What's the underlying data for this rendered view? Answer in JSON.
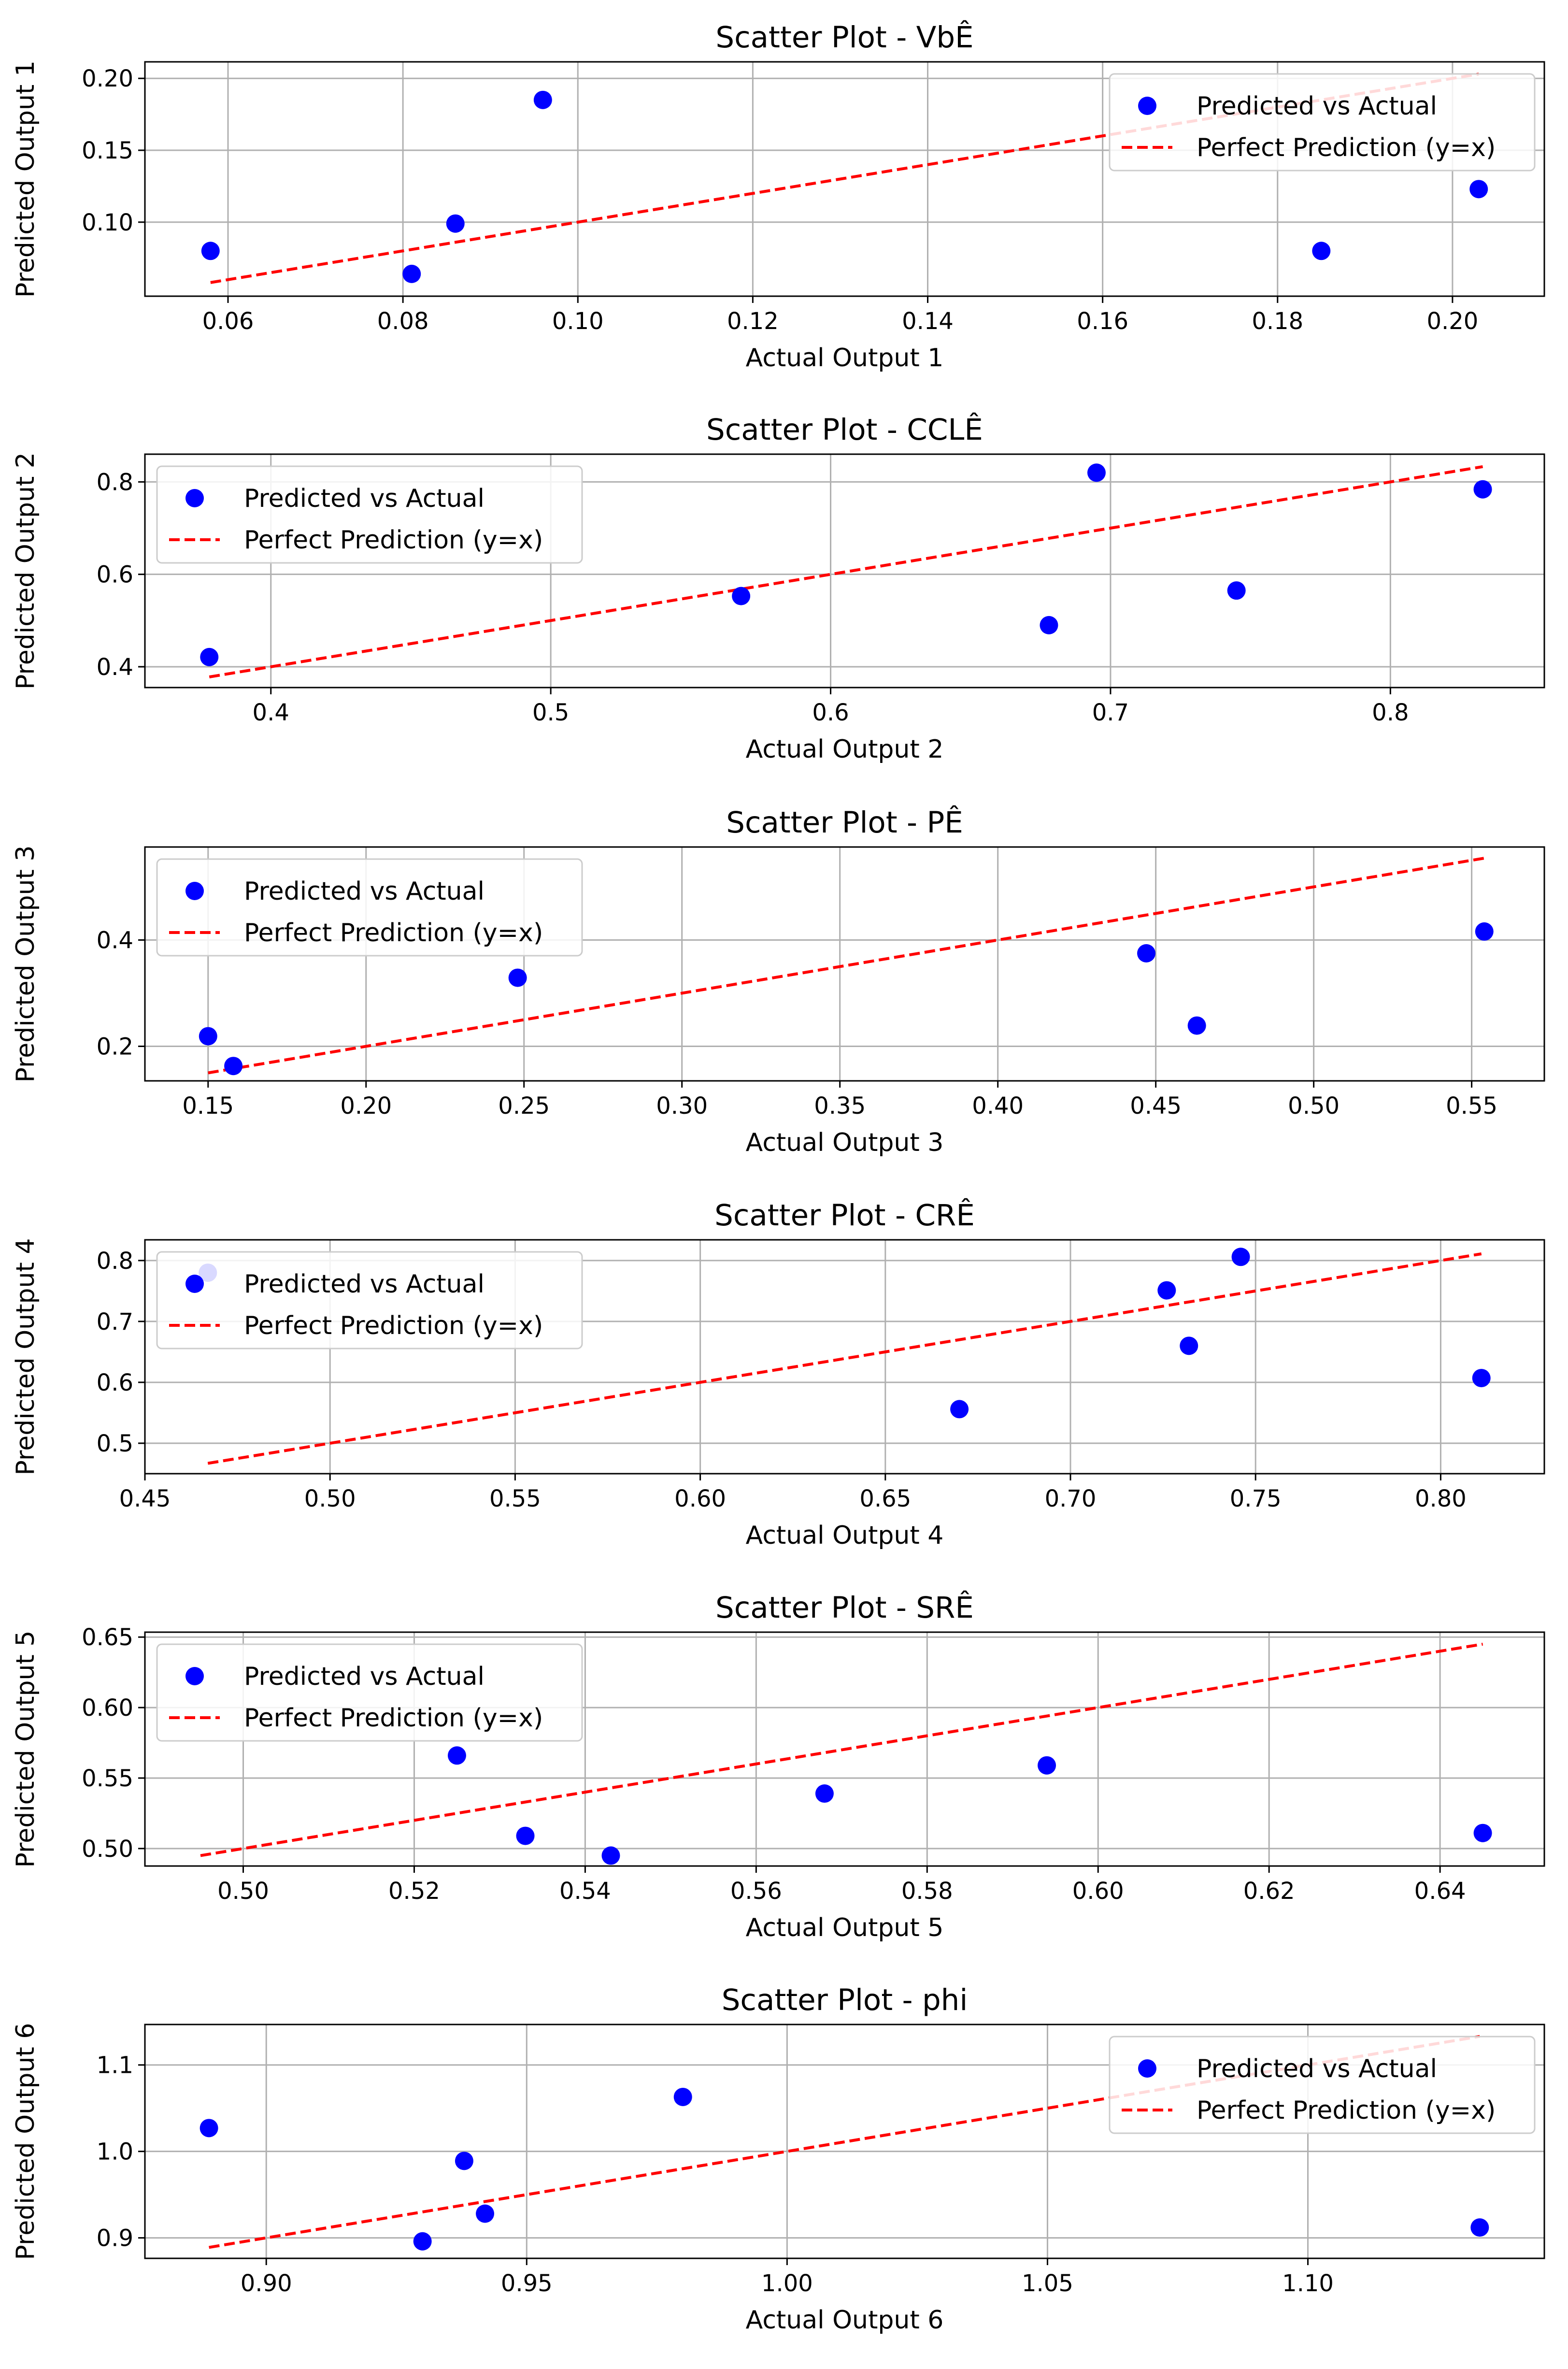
{
  "chart_data": [
    {
      "type": "scatter",
      "title": "Scatter Plot - VbÊ",
      "xlabel": "Actual Output 1",
      "ylabel": "Predicted Output 1",
      "xlim": [
        0.0505,
        0.2105
      ],
      "ylim": [
        0.0485,
        0.2115
      ],
      "xticks": [
        0.06,
        0.08,
        0.1,
        0.12,
        0.14,
        0.16,
        0.18,
        0.2
      ],
      "xtick_labels": [
        "0.06",
        "0.08",
        "0.10",
        "0.12",
        "0.14",
        "0.16",
        "0.18",
        "0.20"
      ],
      "yticks": [
        0.1,
        0.15,
        0.2
      ],
      "ytick_labels": [
        "0.10",
        "0.15",
        "0.20"
      ],
      "grid": true,
      "legend_position": "upper-right",
      "series": [
        {
          "name": "Predicted vs Actual",
          "kind": "scatter",
          "color": "#0000ff",
          "x": [
            0.058,
            0.081,
            0.086,
            0.096,
            0.185,
            0.203
          ],
          "y": [
            0.08,
            0.064,
            0.099,
            0.185,
            0.08,
            0.123
          ]
        },
        {
          "name": "Perfect Prediction (y=x)",
          "kind": "line",
          "style": "dashed",
          "color": "#ff0000",
          "x": [
            0.058,
            0.203
          ],
          "y": [
            0.058,
            0.203
          ]
        }
      ]
    },
    {
      "type": "scatter",
      "title": "Scatter Plot - CCLÊ",
      "xlabel": "Actual Output 2",
      "ylabel": "Predicted Output 2",
      "xlim": [
        0.355,
        0.855
      ],
      "ylim": [
        0.355,
        0.86
      ],
      "xticks": [
        0.4,
        0.5,
        0.6,
        0.7,
        0.8
      ],
      "xtick_labels": [
        "0.4",
        "0.5",
        "0.6",
        "0.7",
        "0.8"
      ],
      "yticks": [
        0.4,
        0.6,
        0.8
      ],
      "ytick_labels": [
        "0.4",
        "0.6",
        "0.8"
      ],
      "grid": true,
      "legend_position": "upper-left",
      "series": [
        {
          "name": "Predicted vs Actual",
          "kind": "scatter",
          "color": "#0000ff",
          "x": [
            0.378,
            0.568,
            0.678,
            0.695,
            0.745,
            0.833
          ],
          "y": [
            0.421,
            0.553,
            0.49,
            0.82,
            0.565,
            0.784
          ]
        },
        {
          "name": "Perfect Prediction (y=x)",
          "kind": "line",
          "style": "dashed",
          "color": "#ff0000",
          "x": [
            0.378,
            0.833
          ],
          "y": [
            0.378,
            0.833
          ]
        }
      ]
    },
    {
      "type": "scatter",
      "title": "Scatter Plot - PÊ",
      "xlabel": "Actual Output 3",
      "ylabel": "Predicted Output 3",
      "xlim": [
        0.13,
        0.573
      ],
      "ylim": [
        0.135,
        0.575
      ],
      "xticks": [
        0.15,
        0.2,
        0.25,
        0.3,
        0.35,
        0.4,
        0.45,
        0.5,
        0.55
      ],
      "xtick_labels": [
        "0.15",
        "0.20",
        "0.25",
        "0.30",
        "0.35",
        "0.40",
        "0.45",
        "0.50",
        "0.55"
      ],
      "yticks": [
        0.2,
        0.4
      ],
      "ytick_labels": [
        "0.2",
        "0.4"
      ],
      "grid": true,
      "legend_position": "upper-left",
      "series": [
        {
          "name": "Predicted vs Actual",
          "kind": "scatter",
          "color": "#0000ff",
          "x": [
            0.15,
            0.158,
            0.248,
            0.447,
            0.463,
            0.554
          ],
          "y": [
            0.219,
            0.163,
            0.329,
            0.375,
            0.239,
            0.416
          ]
        },
        {
          "name": "Perfect Prediction (y=x)",
          "kind": "line",
          "style": "dashed",
          "color": "#ff0000",
          "x": [
            0.15,
            0.554
          ],
          "y": [
            0.15,
            0.554
          ]
        }
      ]
    },
    {
      "type": "scatter",
      "title": "Scatter Plot - CRÊ",
      "xlabel": "Actual Output 4",
      "ylabel": "Predicted Output 4",
      "xlim": [
        0.45,
        0.828
      ],
      "ylim": [
        0.45,
        0.834
      ],
      "xticks": [
        0.45,
        0.5,
        0.55,
        0.6,
        0.65,
        0.7,
        0.75,
        0.8
      ],
      "xtick_labels": [
        "0.45",
        "0.50",
        "0.55",
        "0.60",
        "0.65",
        "0.70",
        "0.75",
        "0.80"
      ],
      "yticks": [
        0.5,
        0.6,
        0.7,
        0.8
      ],
      "ytick_labels": [
        "0.5",
        "0.6",
        "0.7",
        "0.8"
      ],
      "grid": true,
      "legend_position": "upper-left",
      "series": [
        {
          "name": "Predicted vs Actual",
          "kind": "scatter",
          "color": "#0000ff",
          "x": [
            0.467,
            0.67,
            0.726,
            0.732,
            0.746,
            0.811
          ],
          "y": [
            0.78,
            0.556,
            0.751,
            0.66,
            0.806,
            0.607
          ]
        },
        {
          "name": "Perfect Prediction (y=x)",
          "kind": "line",
          "style": "dashed",
          "color": "#ff0000",
          "x": [
            0.467,
            0.811
          ],
          "y": [
            0.467,
            0.811
          ]
        }
      ]
    },
    {
      "type": "scatter",
      "title": "Scatter Plot - SRÊ",
      "xlabel": "Actual Output 5",
      "ylabel": "Predicted Output 5",
      "xlim": [
        0.4885,
        0.6522
      ],
      "ylim": [
        0.4876,
        0.6535
      ],
      "xticks": [
        0.5,
        0.52,
        0.54,
        0.56,
        0.58,
        0.6,
        0.62,
        0.64
      ],
      "xtick_labels": [
        "0.50",
        "0.52",
        "0.54",
        "0.56",
        "0.58",
        "0.60",
        "0.62",
        "0.64"
      ],
      "yticks": [
        0.5,
        0.55,
        0.6,
        0.65
      ],
      "ytick_labels": [
        "0.50",
        "0.55",
        "0.60",
        "0.65"
      ],
      "grid": true,
      "legend_position": "upper-left",
      "series": [
        {
          "name": "Predicted vs Actual",
          "kind": "scatter",
          "color": "#0000ff",
          "x": [
            0.525,
            0.533,
            0.543,
            0.568,
            0.594,
            0.645
          ],
          "y": [
            0.566,
            0.509,
            0.495,
            0.539,
            0.559,
            0.511
          ]
        },
        {
          "name": "Perfect Prediction (y=x)",
          "kind": "line",
          "style": "dashed",
          "color": "#ff0000",
          "x": [
            0.495,
            0.645
          ],
          "y": [
            0.495,
            0.645
          ]
        }
      ]
    },
    {
      "type": "scatter",
      "title": "Scatter Plot - phi",
      "xlabel": "Actual Output 6",
      "ylabel": "Predicted Output 6",
      "xlim": [
        0.8767,
        1.1454
      ],
      "ylim": [
        0.8763,
        1.1468
      ],
      "xticks": [
        0.9,
        0.95,
        1.0,
        1.05,
        1.1
      ],
      "xtick_labels": [
        "0.90",
        "0.95",
        "1.00",
        "1.05",
        "1.10"
      ],
      "yticks": [
        0.9,
        1.0,
        1.1
      ],
      "ytick_labels": [
        "0.9",
        "1.0",
        "1.1"
      ],
      "grid": true,
      "legend_position": "upper-right",
      "series": [
        {
          "name": "Predicted vs Actual",
          "kind": "scatter",
          "color": "#0000ff",
          "x": [
            0.889,
            0.93,
            0.938,
            0.942,
            0.98,
            1.133
          ],
          "y": [
            1.027,
            0.896,
            0.989,
            0.928,
            1.063,
            0.912
          ]
        },
        {
          "name": "Perfect Prediction (y=x)",
          "kind": "line",
          "style": "dashed",
          "color": "#ff0000",
          "x": [
            0.889,
            1.133
          ],
          "y": [
            0.889,
            1.133
          ]
        }
      ]
    }
  ]
}
